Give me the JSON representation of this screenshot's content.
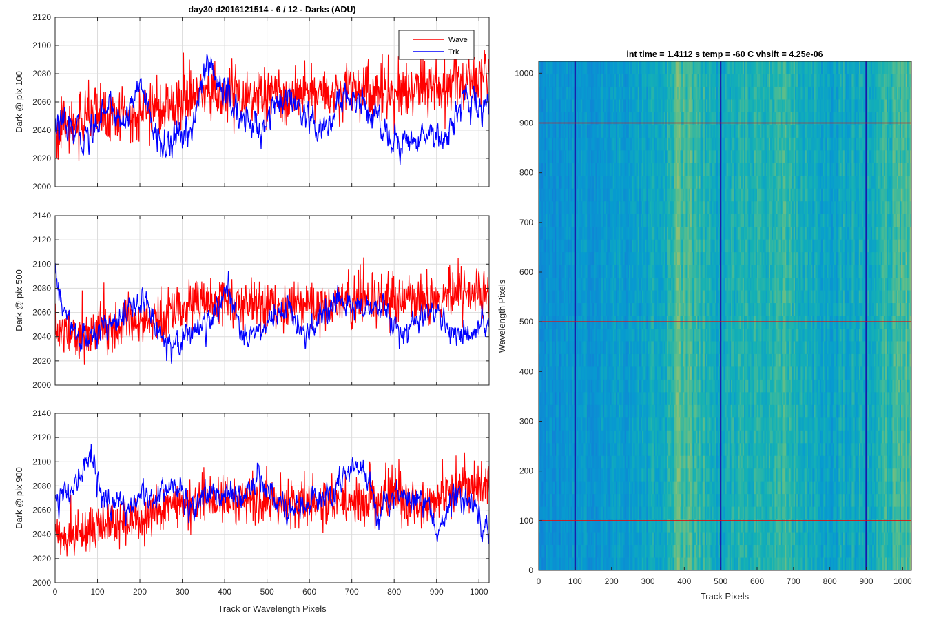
{
  "figure_title": "day30 d2016121514 - 6 / 12 - Darks (ADU)",
  "heatmap_title": "int time = 1.4112 s    temp = -60 C    vhsift = 4.25e-06",
  "colors": {
    "wave": "#ff0000",
    "trk": "#0000ff",
    "grid": "#dcdcdc",
    "axis": "#262626"
  },
  "chart_data": [
    {
      "type": "line",
      "title": "day30 d2016121514 - 6 / 12 - Darks (ADU)",
      "ylabel": "Dark @ pix 100",
      "xlabel": "",
      "xlim": [
        0,
        1024
      ],
      "ylim": [
        2000,
        2120
      ],
      "xticks": [
        0,
        100,
        200,
        300,
        400,
        500,
        600,
        700,
        800,
        900,
        1000
      ],
      "yticks": [
        2000,
        2020,
        2040,
        2060,
        2080,
        2100,
        2120
      ],
      "grid": true,
      "legend": {
        "placement": "top-right",
        "entries": [
          "Wave",
          "Trk"
        ]
      },
      "series": [
        {
          "name": "Wave",
          "color": "#ff0000",
          "noise": 12,
          "x": [
            0,
            50,
            100,
            150,
            200,
            250,
            300,
            350,
            400,
            450,
            500,
            550,
            600,
            650,
            700,
            750,
            800,
            850,
            900,
            950,
            1000,
            1024
          ],
          "y": [
            2040,
            2045,
            2050,
            2050,
            2052,
            2055,
            2058,
            2068,
            2066,
            2062,
            2064,
            2062,
            2064,
            2066,
            2070,
            2068,
            2066,
            2070,
            2070,
            2072,
            2078,
            2080
          ]
        },
        {
          "name": "Trk",
          "color": "#0000ff",
          "noise": 6,
          "x": [
            0,
            40,
            80,
            120,
            160,
            200,
            240,
            280,
            320,
            360,
            400,
            440,
            480,
            520,
            560,
            600,
            640,
            680,
            720,
            760,
            800,
            840,
            880,
            920,
            960,
            1000,
            1024
          ],
          "y": [
            2045,
            2038,
            2035,
            2060,
            2045,
            2075,
            2032,
            2030,
            2040,
            2088,
            2066,
            2048,
            2040,
            2058,
            2060,
            2042,
            2038,
            2065,
            2060,
            2048,
            2032,
            2030,
            2040,
            2035,
            2060,
            2055,
            2058
          ]
        }
      ]
    },
    {
      "type": "line",
      "ylabel": "Dark @ pix 500",
      "xlabel": "",
      "xlim": [
        0,
        1024
      ],
      "ylim": [
        2000,
        2140
      ],
      "xticks": [
        0,
        100,
        200,
        300,
        400,
        500,
        600,
        700,
        800,
        900,
        1000
      ],
      "yticks": [
        2000,
        2020,
        2040,
        2060,
        2080,
        2100,
        2120,
        2140
      ],
      "grid": true,
      "series": [
        {
          "name": "Wave",
          "color": "#ff0000",
          "noise": 12,
          "x": [
            0,
            50,
            100,
            150,
            200,
            250,
            300,
            350,
            400,
            450,
            500,
            550,
            600,
            650,
            700,
            750,
            800,
            850,
            900,
            950,
            1000,
            1024
          ],
          "y": [
            2045,
            2042,
            2045,
            2050,
            2052,
            2055,
            2062,
            2068,
            2070,
            2066,
            2066,
            2064,
            2066,
            2066,
            2068,
            2070,
            2070,
            2072,
            2072,
            2075,
            2078,
            2078
          ]
        },
        {
          "name": "Trk",
          "color": "#0000ff",
          "noise": 6,
          "x": [
            0,
            20,
            50,
            90,
            130,
            170,
            210,
            250,
            290,
            330,
            370,
            400,
            440,
            480,
            510,
            550,
            580,
            620,
            660,
            700,
            740,
            780,
            820,
            860,
            900,
            940,
            980,
            1024
          ],
          "y": [
            2090,
            2060,
            2040,
            2038,
            2055,
            2060,
            2070,
            2040,
            2035,
            2048,
            2050,
            2080,
            2045,
            2042,
            2055,
            2065,
            2040,
            2050,
            2065,
            2068,
            2062,
            2060,
            2040,
            2056,
            2058,
            2042,
            2040,
            2050
          ]
        }
      ]
    },
    {
      "type": "line",
      "ylabel": "Dark @ pix 900",
      "xlabel": "Track or Wavelength Pixels",
      "xlim": [
        0,
        1024
      ],
      "ylim": [
        2000,
        2140
      ],
      "xticks": [
        0,
        100,
        200,
        300,
        400,
        500,
        600,
        700,
        800,
        900,
        1000
      ],
      "yticks": [
        2000,
        2020,
        2040,
        2060,
        2080,
        2100,
        2120,
        2140
      ],
      "grid": true,
      "series": [
        {
          "name": "Wave",
          "color": "#ff0000",
          "noise": 12,
          "x": [
            0,
            50,
            100,
            150,
            200,
            250,
            300,
            350,
            400,
            450,
            500,
            550,
            600,
            650,
            700,
            750,
            800,
            850,
            900,
            950,
            1000,
            1024
          ],
          "y": [
            2040,
            2038,
            2045,
            2048,
            2055,
            2060,
            2065,
            2066,
            2068,
            2070,
            2066,
            2064,
            2066,
            2065,
            2066,
            2068,
            2070,
            2066,
            2068,
            2074,
            2080,
            2080
          ]
        },
        {
          "name": "Trk",
          "color": "#0000ff",
          "noise": 6,
          "x": [
            0,
            40,
            70,
            85,
            110,
            150,
            200,
            240,
            280,
            320,
            350,
            400,
            440,
            480,
            520,
            560,
            600,
            650,
            700,
            730,
            760,
            800,
            840,
            880,
            900,
            940,
            980,
            1024
          ],
          "y": [
            2075,
            2070,
            2100,
            2108,
            2070,
            2062,
            2068,
            2072,
            2085,
            2060,
            2075,
            2072,
            2068,
            2090,
            2070,
            2058,
            2066,
            2072,
            2092,
            2098,
            2060,
            2075,
            2068,
            2070,
            2038,
            2072,
            2068,
            2045
          ]
        }
      ]
    },
    {
      "type": "heatmap",
      "title": "int time = 1.4112 s    temp = -60 C    vhsift = 4.25e-06",
      "xlabel": "Track Pixels",
      "ylabel": "Wavelength Pixels",
      "xlim": [
        0,
        1024
      ],
      "ylim": [
        0,
        1024
      ],
      "xticks": [
        0,
        100,
        200,
        300,
        400,
        500,
        600,
        700,
        800,
        900,
        1000
      ],
      "yticks": [
        0,
        100,
        200,
        300,
        400,
        500,
        600,
        700,
        800,
        900,
        1000
      ],
      "colormap": "parula",
      "column_brightness": {
        "x": [
          0,
          100,
          200,
          300,
          350,
          380,
          420,
          460,
          500,
          550,
          600,
          650,
          700,
          750,
          800,
          850,
          900,
          950,
          1000,
          1024
        ],
        "level": [
          0.4,
          0.42,
          0.44,
          0.47,
          0.55,
          0.64,
          0.6,
          0.54,
          0.5,
          0.56,
          0.54,
          0.58,
          0.55,
          0.52,
          0.48,
          0.52,
          0.5,
          0.58,
          0.62,
          0.64
        ]
      },
      "dark_columns": [
        100,
        500,
        900
      ],
      "marker_rows": [
        100,
        500,
        900
      ]
    }
  ]
}
